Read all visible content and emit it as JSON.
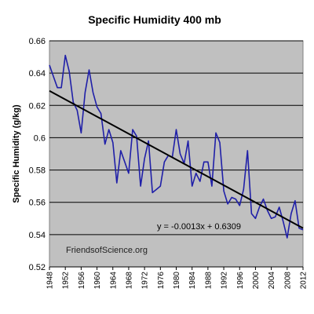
{
  "chart_data": {
    "type": "line",
    "title": "Specific Humidity 400 mb",
    "xlabel": "",
    "ylabel": "Specific Humidity (g/kg)",
    "xlim": [
      1948,
      2012
    ],
    "ylim": [
      0.52,
      0.66
    ],
    "y_ticks": [
      "0.52",
      "0.54",
      "0.56",
      "0.58",
      "0.6",
      "0.62",
      "0.64",
      "0.66"
    ],
    "x_ticks": [
      "1948",
      "1952",
      "1956",
      "1960",
      "1964",
      "1968",
      "1972",
      "1976",
      "1980",
      "1984",
      "1988",
      "1992",
      "1996",
      "2000",
      "2004",
      "2008",
      "2012"
    ],
    "grid": "horizontal",
    "plot_background": "#c0c0c0",
    "series": [
      {
        "color": "#1f1fa8",
        "x": [
          1948,
          1949,
          1950,
          1951,
          1952,
          1953,
          1954,
          1955,
          1956,
          1957,
          1958,
          1959,
          1960,
          1961,
          1962,
          1963,
          1964,
          1965,
          1966,
          1967,
          1968,
          1969,
          1970,
          1971,
          1972,
          1973,
          1974,
          1975,
          1976,
          1977,
          1978,
          1979,
          1980,
          1981,
          1982,
          1983,
          1984,
          1985,
          1986,
          1987,
          1988,
          1989,
          1990,
          1991,
          1992,
          1993,
          1994,
          1995,
          1996,
          1997,
          1998,
          1999,
          2000,
          2001,
          2002,
          2003,
          2004,
          2005,
          2006,
          2007,
          2008,
          2009,
          2010,
          2011,
          2012
        ],
        "y": [
          0.645,
          0.638,
          0.631,
          0.631,
          0.651,
          0.641,
          0.622,
          0.617,
          0.603,
          0.628,
          0.642,
          0.628,
          0.619,
          0.615,
          0.596,
          0.605,
          0.597,
          0.572,
          0.592,
          0.585,
          0.578,
          0.605,
          0.601,
          0.57,
          0.587,
          0.598,
          0.566,
          0.568,
          0.57,
          0.585,
          0.589,
          0.588,
          0.605,
          0.59,
          0.584,
          0.598,
          0.57,
          0.578,
          0.573,
          0.585,
          0.585,
          0.57,
          0.603,
          0.597,
          0.567,
          0.559,
          0.563,
          0.562,
          0.558,
          0.568,
          0.592,
          0.553,
          0.55,
          0.557,
          0.562,
          0.555,
          0.55,
          0.551,
          0.557,
          0.548,
          0.538,
          0.553,
          0.561,
          0.544,
          0.543
        ]
      },
      {
        "color": "#000000",
        "x": [
          1948,
          2012
        ],
        "y": [
          0.629,
          0.544
        ]
      }
    ],
    "annotations": [
      "y = -0.0013x + 0.6309",
      "FriendsofScience.org"
    ]
  }
}
